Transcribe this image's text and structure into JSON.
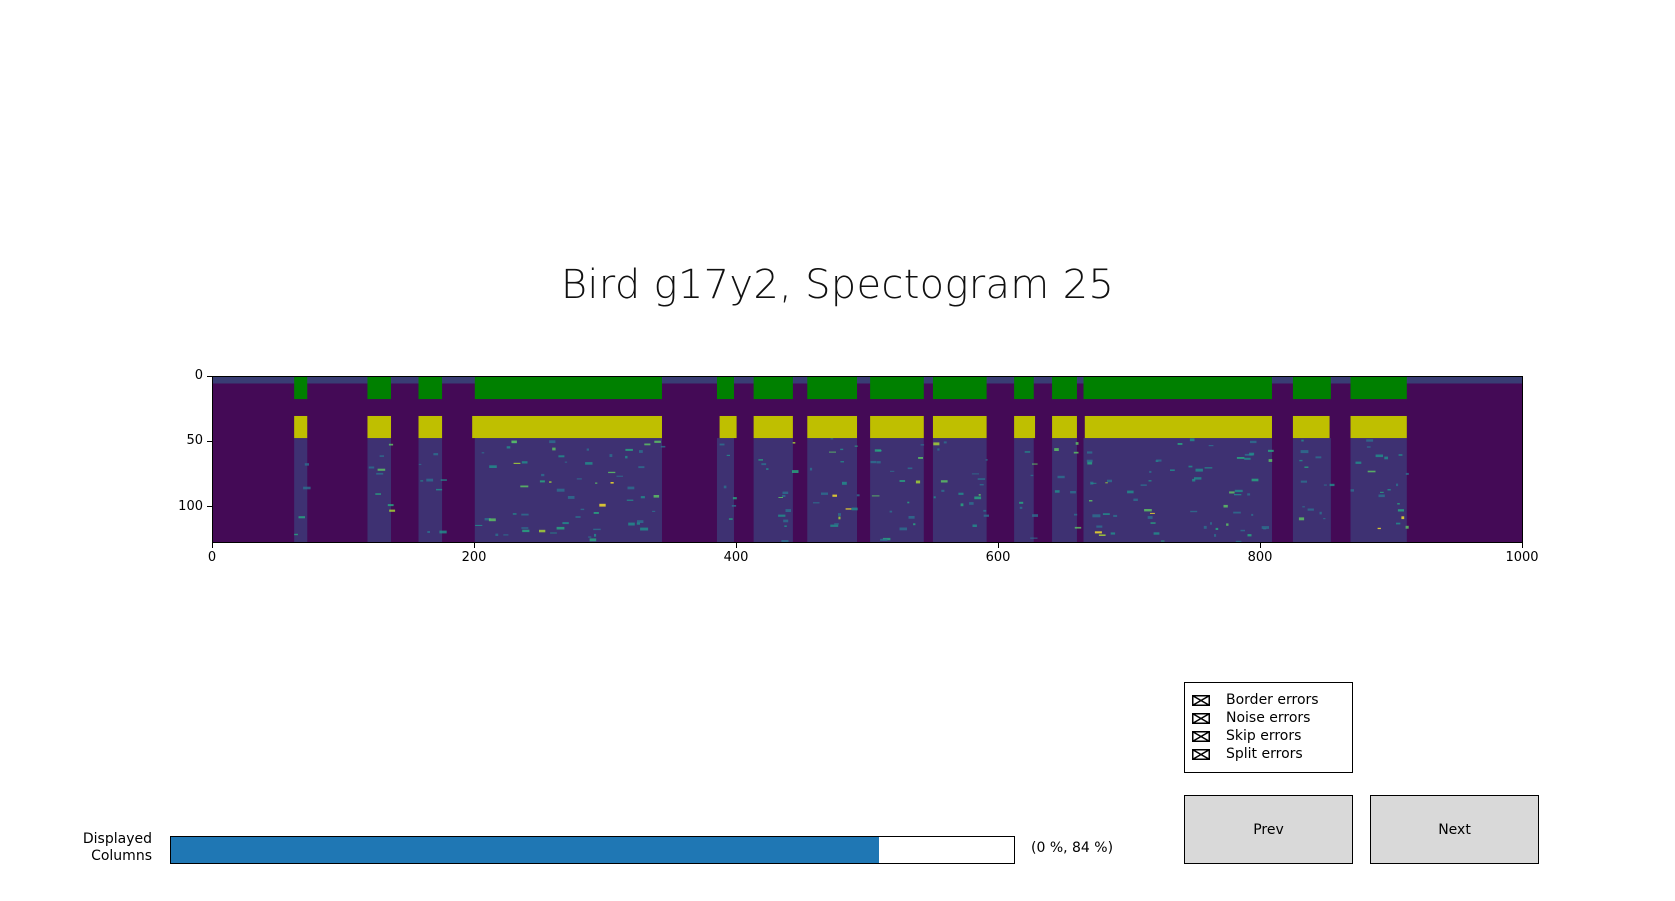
{
  "title": "Bird g17y2, Spectogram 25",
  "spectrogram": {
    "x_ticks": [
      "0",
      "200",
      "400",
      "600",
      "800",
      "1000"
    ],
    "y_ticks": [
      "0",
      "50",
      "100"
    ],
    "colors": {
      "background": "#440a56",
      "label_band": "#008000",
      "prediction_band": "#bfbf00"
    }
  },
  "chart_data": {
    "type": "heatmap",
    "colormap": "viridis",
    "xlim": [
      0,
      1000
    ],
    "ylim": [
      127,
      0
    ],
    "x_ticks": [
      0,
      200,
      400,
      600,
      800,
      1000
    ],
    "y_ticks": [
      0,
      50,
      100
    ],
    "label_band_rows": [
      0,
      17
    ],
    "prediction_band_rows": [
      30,
      47
    ],
    "label_segments": [
      [
        62,
        72
      ],
      [
        118,
        136
      ],
      [
        157,
        175
      ],
      [
        200,
        343
      ],
      [
        385,
        398
      ],
      [
        413,
        443
      ],
      [
        454,
        492
      ],
      [
        502,
        543
      ],
      [
        550,
        591
      ],
      [
        612,
        627
      ],
      [
        641,
        660
      ],
      [
        665,
        809
      ],
      [
        825,
        854
      ],
      [
        869,
        912
      ]
    ],
    "prediction_segments": [
      [
        62,
        72
      ],
      [
        118,
        136
      ],
      [
        157,
        175
      ],
      [
        198,
        343
      ],
      [
        387,
        400
      ],
      [
        413,
        443
      ],
      [
        454,
        492
      ],
      [
        502,
        543
      ],
      [
        550,
        591
      ],
      [
        612,
        628
      ],
      [
        641,
        660
      ],
      [
        666,
        809
      ],
      [
        825,
        853
      ],
      [
        869,
        912
      ]
    ]
  },
  "error_filters": [
    {
      "label": "Border errors",
      "checked": true
    },
    {
      "label": "Noise errors",
      "checked": true
    },
    {
      "label": "Skip errors",
      "checked": true
    },
    {
      "label": "Split errors",
      "checked": true
    }
  ],
  "buttons": {
    "prev": "Prev",
    "next": "Next"
  },
  "slider": {
    "label_line1": "Displayed",
    "label_line2": "Columns",
    "value_text": "(0 %, 84 %)",
    "range": [
      0,
      0.84
    ]
  }
}
